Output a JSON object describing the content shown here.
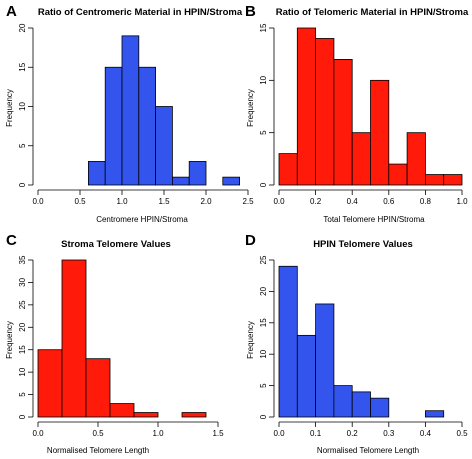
{
  "chart_data": [
    {
      "type": "bar",
      "letter": "A",
      "title": "Ratio of Centromeric Material in HPIN/Stroma",
      "xlabel": "Centromere HPIN/Stroma",
      "ylabel": "Frequency",
      "color": "#3355ee",
      "bins": [
        {
          "x0": 0.6,
          "x1": 0.8,
          "value": 3
        },
        {
          "x0": 0.8,
          "x1": 1.0,
          "value": 15
        },
        {
          "x0": 1.0,
          "x1": 1.2,
          "value": 19
        },
        {
          "x0": 1.2,
          "x1": 1.4,
          "value": 15
        },
        {
          "x0": 1.4,
          "x1": 1.6,
          "value": 10
        },
        {
          "x0": 1.6,
          "x1": 1.8,
          "value": 1
        },
        {
          "x0": 1.8,
          "x1": 2.0,
          "value": 3
        },
        {
          "x0": 2.0,
          "x1": 2.2,
          "value": 0
        },
        {
          "x0": 2.2,
          "x1": 2.4,
          "value": 1
        }
      ],
      "xlim": [
        0,
        2.5
      ],
      "ylim": [
        0,
        20
      ],
      "xticks": [
        "0.0",
        "0.5",
        "1.0",
        "1.5",
        "2.0",
        "2.5"
      ],
      "xtick_values": [
        0,
        0.5,
        1.0,
        1.5,
        2.0,
        2.5
      ],
      "yticks": [
        "0",
        "5",
        "10",
        "15",
        "20"
      ],
      "ytick_values": [
        0,
        5,
        10,
        15,
        20
      ]
    },
    {
      "type": "bar",
      "letter": "B",
      "title": "Ratio of Telomeric Material in HPIN/Stroma",
      "xlabel": "Total Telomere HPIN/Stroma",
      "ylabel": "Frequency",
      "color": "#ff1a0a",
      "bins": [
        {
          "x0": 0.0,
          "x1": 0.1,
          "value": 3
        },
        {
          "x0": 0.1,
          "x1": 0.2,
          "value": 15
        },
        {
          "x0": 0.2,
          "x1": 0.3,
          "value": 14
        },
        {
          "x0": 0.3,
          "x1": 0.4,
          "value": 12
        },
        {
          "x0": 0.4,
          "x1": 0.5,
          "value": 5
        },
        {
          "x0": 0.5,
          "x1": 0.6,
          "value": 10
        },
        {
          "x0": 0.6,
          "x1": 0.7,
          "value": 2
        },
        {
          "x0": 0.7,
          "x1": 0.8,
          "value": 5
        },
        {
          "x0": 0.8,
          "x1": 0.9,
          "value": 1
        },
        {
          "x0": 0.9,
          "x1": 1.0,
          "value": 1
        }
      ],
      "xlim": [
        0,
        1.0
      ],
      "ylim": [
        0,
        15
      ],
      "xticks": [
        "0.0",
        "0.2",
        "0.4",
        "0.6",
        "0.8",
        "1.0"
      ],
      "xtick_values": [
        0,
        0.2,
        0.4,
        0.6,
        0.8,
        1.0
      ],
      "yticks": [
        "0",
        "5",
        "10",
        "15"
      ],
      "ytick_values": [
        0,
        5,
        10,
        15
      ]
    },
    {
      "type": "bar",
      "letter": "C",
      "title": "Stroma Telomere Values",
      "xlabel": "Normalised Telomere Length",
      "ylabel": "Frequency",
      "color": "#ff1a0a",
      "bins": [
        {
          "x0": 0.0,
          "x1": 0.2,
          "value": 15
        },
        {
          "x0": 0.2,
          "x1": 0.4,
          "value": 35
        },
        {
          "x0": 0.4,
          "x1": 0.6,
          "value": 13
        },
        {
          "x0": 0.6,
          "x1": 0.8,
          "value": 3
        },
        {
          "x0": 0.8,
          "x1": 1.0,
          "value": 1
        },
        {
          "x0": 1.0,
          "x1": 1.2,
          "value": 0
        },
        {
          "x0": 1.2,
          "x1": 1.4,
          "value": 1
        }
      ],
      "xlim": [
        0,
        1.5
      ],
      "ylim": [
        0,
        35
      ],
      "xticks": [
        "0.0",
        "0.5",
        "1.0",
        "1.5"
      ],
      "xtick_values": [
        0,
        0.5,
        1.0,
        1.5
      ],
      "yticks": [
        "0",
        "5",
        "10",
        "15",
        "20",
        "25",
        "30",
        "35"
      ],
      "ytick_values": [
        0,
        5,
        10,
        15,
        20,
        25,
        30,
        35
      ]
    },
    {
      "type": "bar",
      "letter": "D",
      "title": "HPIN Telomere Values",
      "xlabel": "Normalised Telomere Length",
      "ylabel": "Frequency",
      "color": "#3355ee",
      "bins": [
        {
          "x0": 0.0,
          "x1": 0.05,
          "value": 24
        },
        {
          "x0": 0.05,
          "x1": 0.1,
          "value": 13
        },
        {
          "x0": 0.1,
          "x1": 0.15,
          "value": 18
        },
        {
          "x0": 0.15,
          "x1": 0.2,
          "value": 5
        },
        {
          "x0": 0.2,
          "x1": 0.25,
          "value": 4
        },
        {
          "x0": 0.25,
          "x1": 0.3,
          "value": 3
        },
        {
          "x0": 0.3,
          "x1": 0.35,
          "value": 0
        },
        {
          "x0": 0.35,
          "x1": 0.4,
          "value": 0
        },
        {
          "x0": 0.4,
          "x1": 0.45,
          "value": 1
        }
      ],
      "xlim": [
        0,
        0.5
      ],
      "ylim": [
        0,
        25
      ],
      "xticks": [
        "0.0",
        "0.1",
        "0.2",
        "0.3",
        "0.4",
        "0.5"
      ],
      "xtick_values": [
        0,
        0.1,
        0.2,
        0.3,
        0.4,
        0.5
      ],
      "yticks": [
        "0",
        "5",
        "10",
        "15",
        "20",
        "25"
      ],
      "ytick_values": [
        0,
        5,
        10,
        15,
        20,
        25
      ]
    }
  ]
}
